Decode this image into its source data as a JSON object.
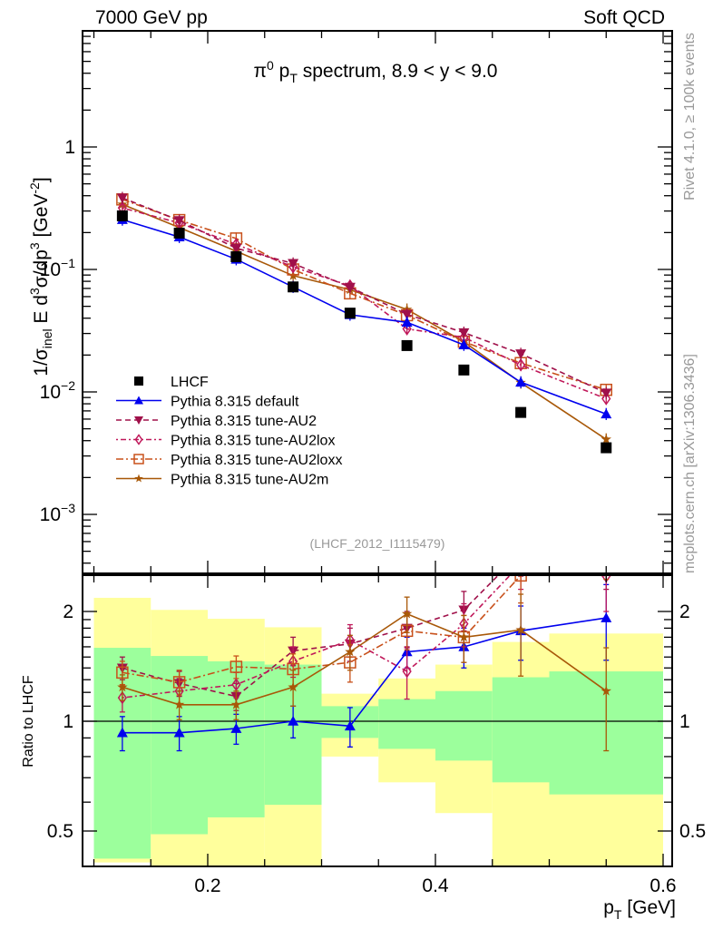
{
  "header": {
    "left": "7000 GeV pp",
    "right": "Soft QCD"
  },
  "side_labels": {
    "rivet": "Rivet 4.1.0, ≥ 100k events",
    "mcplots": "mcplots.cern.ch [arXiv:1306.3436]"
  },
  "analysis_id": "(LHCF_2012_I1115479)",
  "colors": {
    "LHCF": "#000000",
    "default": "#0000ee",
    "AU2": "#a0104a",
    "AU2lox": "#c0185a",
    "AU2loxx": "#c8501a",
    "AU2m": "#a85808",
    "band_inner": "#9cff9c",
    "band_outer": "#ffff9c"
  },
  "chart_data": [
    {
      "type": "scatter",
      "title": "π⁰ pT spectrum, 8.9 < y < 9.0",
      "title_parts": {
        "pi": "π",
        "zero": "0",
        "p": " p",
        "T": "T",
        "rest": " spectrum, 8.9 < y < 9.0"
      },
      "ylabel": "1/σinel E d³σ/dp³ [GeV⁻²]",
      "ylabel_parts": {
        "a": "1/σ",
        "inel": "inel",
        "b": " E d",
        "three": "3",
        "c": "σ/dp",
        "three2": "3",
        "d": " [GeV",
        "mtwo": "-2",
        "e": "]"
      },
      "yscale": "log",
      "ylim": [
        0.00028,
        16
      ],
      "xlim": [
        0.09,
        0.608
      ],
      "yticks": [
        {
          "value": 1,
          "label": "1"
        },
        {
          "value": 0.1,
          "base": "10",
          "exp": "−1"
        },
        {
          "value": 0.01,
          "base": "10",
          "exp": "−2"
        },
        {
          "value": 0.001,
          "base": "10",
          "exp": "−3"
        }
      ],
      "legend_position": "bottom-left",
      "x": [
        0.125,
        0.175,
        0.225,
        0.275,
        0.325,
        0.375,
        0.425,
        0.475,
        0.55
      ],
      "series": [
        {
          "key": "LHCF",
          "name": "LHCF",
          "marker": "square",
          "line": "none",
          "values": [
            0.274,
            0.198,
            0.127,
            0.072,
            0.044,
            0.0239,
            0.0151,
            0.0068,
            0.0035
          ]
        },
        {
          "key": "default",
          "name": "Pythia 8.315 default",
          "marker": "triangle-up",
          "line": "solid",
          "values": [
            0.255,
            0.184,
            0.121,
            0.072,
            0.0427,
            0.037,
            0.0242,
            0.012,
            0.0066
          ]
        },
        {
          "key": "AU2",
          "name": "Pythia 8.315 tune-AU2",
          "marker": "triangle-down",
          "line": "dashed",
          "values": [
            0.384,
            0.251,
            0.149,
            0.112,
            0.0717,
            0.043,
            0.0305,
            0.0205,
            0.0098
          ]
        },
        {
          "key": "AU2lox",
          "name": "Pythia 8.315 tune-AU2lox",
          "marker": "diamond-open",
          "line": "dotdash",
          "values": [
            0.318,
            0.24,
            0.16,
            0.105,
            0.0735,
            0.0327,
            0.0279,
            0.0166,
            0.0088
          ]
        },
        {
          "key": "AU2loxx",
          "name": "Pythia 8.315 tune-AU2loxx",
          "marker": "square-open",
          "line": "dashdot",
          "values": [
            0.373,
            0.253,
            0.179,
            0.1,
            0.0638,
            0.0423,
            0.0257,
            0.0172,
            0.0104
          ]
        },
        {
          "key": "AU2m",
          "name": "Pythia 8.315 tune-AU2m",
          "marker": "star",
          "line": "solid",
          "values": [
            0.34,
            0.22,
            0.141,
            0.089,
            0.0682,
            0.0471,
            0.0257,
            0.0119,
            0.0041
          ]
        }
      ]
    },
    {
      "type": "line",
      "title": "Ratio to LHCF",
      "ylabel": "Ratio to LHCF",
      "xlabel": "pT [GeV]",
      "xlabel_parts": {
        "p": "p",
        "T": "T",
        "rest": " [GeV]"
      },
      "yscale": "log",
      "ylim": [
        0.38,
        2.5
      ],
      "xlim": [
        0.09,
        0.608
      ],
      "xticks": [
        {
          "value": 0.2,
          "label": "0.2"
        },
        {
          "value": 0.4,
          "label": "0.4"
        },
        {
          "value": 0.6,
          "label": "0.6"
        }
      ],
      "yticks": [
        {
          "value": 0.5,
          "label": "0.5"
        },
        {
          "value": 1,
          "label": "1"
        },
        {
          "value": 2,
          "label": "2"
        }
      ],
      "bins": [
        [
          0.1,
          0.15
        ],
        [
          0.15,
          0.2
        ],
        [
          0.2,
          0.25
        ],
        [
          0.25,
          0.3
        ],
        [
          0.3,
          0.35
        ],
        [
          0.35,
          0.4
        ],
        [
          0.4,
          0.45
        ],
        [
          0.45,
          0.5
        ],
        [
          0.5,
          0.6
        ]
      ],
      "band_inner": {
        "low": [
          0.42,
          0.49,
          0.545,
          0.59,
          0.9,
          0.84,
          0.78,
          0.68,
          0.63
        ],
        "high": [
          1.59,
          1.51,
          1.46,
          1.43,
          1.1,
          1.15,
          1.21,
          1.32,
          1.37
        ]
      },
      "band_outer": {
        "low": [
          0.41,
          0.38,
          0.38,
          0.38,
          0.8,
          0.68,
          0.56,
          0.38,
          0.38
        ],
        "high": [
          2.18,
          2.02,
          1.91,
          1.81,
          1.19,
          1.31,
          1.43,
          1.65,
          1.74
        ]
      },
      "x": [
        0.125,
        0.175,
        0.225,
        0.275,
        0.325,
        0.375,
        0.425,
        0.475,
        0.55
      ],
      "series": [
        {
          "key": "default",
          "values": [
            0.93,
            0.93,
            0.955,
            1.0,
            0.97,
            1.55,
            1.6,
            1.77,
            1.92
          ],
          "err": [
            0.1,
            0.1,
            0.09,
            0.1,
            0.12,
            0.15,
            0.2,
            0.3,
            0.45
          ]
        },
        {
          "key": "AU2",
          "values": [
            1.4,
            1.27,
            1.17,
            1.56,
            1.63,
            1.8,
            2.02,
            2.9,
            2.8
          ],
          "err": [
            0.1,
            0.1,
            0.1,
            0.14,
            0.17,
            0.2,
            0.25,
            0.4,
            0.5
          ]
        },
        {
          "key": "AU2lox",
          "values": [
            1.16,
            1.21,
            1.26,
            1.46,
            1.67,
            1.37,
            1.85,
            2.7,
            2.5
          ],
          "err": [
            0.1,
            0.1,
            0.1,
            0.14,
            0.17,
            0.22,
            0.25,
            0.4,
            0.5
          ]
        },
        {
          "key": "AU2loxx",
          "values": [
            1.36,
            1.28,
            1.41,
            1.39,
            1.45,
            1.77,
            1.7,
            2.51,
            2.95
          ],
          "err": [
            0.1,
            0.1,
            0.1,
            0.14,
            0.17,
            0.2,
            0.25,
            0.4,
            0.5
          ]
        },
        {
          "key": "AU2m",
          "values": [
            1.24,
            1.11,
            1.11,
            1.24,
            1.55,
            1.97,
            1.7,
            1.78,
            1.21
          ],
          "err": [
            0.1,
            0.1,
            0.1,
            0.14,
            0.17,
            0.22,
            0.25,
            0.45,
            0.38
          ]
        }
      ]
    }
  ]
}
